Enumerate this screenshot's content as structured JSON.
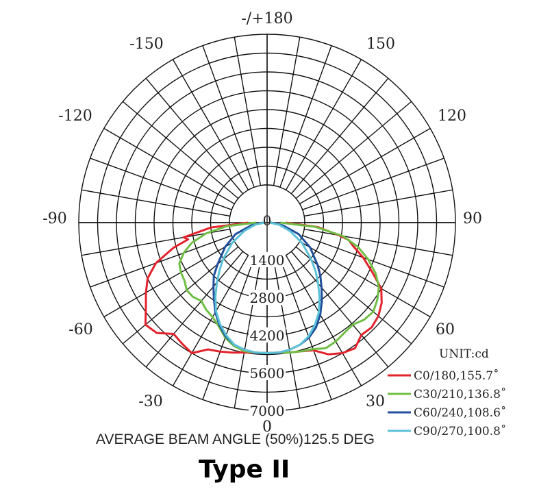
{
  "chart_data": {
    "type": "polar",
    "title": "",
    "angle_labels": [
      {
        "angle": 180,
        "text": "-/+180"
      },
      {
        "angle": -150,
        "text": "-150"
      },
      {
        "angle": 150,
        "text": "150"
      },
      {
        "angle": -120,
        "text": "-120"
      },
      {
        "angle": 120,
        "text": "120"
      },
      {
        "angle": -90,
        "text": "-90"
      },
      {
        "angle": 90,
        "text": "90"
      },
      {
        "angle": -60,
        "text": "-60"
      },
      {
        "angle": 60,
        "text": "60"
      },
      {
        "angle": -30,
        "text": "-30"
      },
      {
        "angle": 30,
        "text": "30"
      },
      {
        "angle": 0,
        "text": "0"
      }
    ],
    "radial_labels": [
      "0",
      "1400",
      "2800",
      "4200",
      "5600",
      "7000"
    ],
    "radial_values": [
      0,
      1400,
      2800,
      4200,
      5600,
      7000
    ],
    "rmax": 7000,
    "unit_label": "UNIT:cd",
    "grid": true,
    "series": [
      {
        "name": "C0/180,155.7˚",
        "color": "#e3222b",
        "points": [
          [
            -90,
            700
          ],
          [
            -85,
            2100
          ],
          [
            -80,
            3150
          ],
          [
            -78,
            3000
          ],
          [
            -75,
            3600
          ],
          [
            -70,
            4400
          ],
          [
            -65,
            4900
          ],
          [
            -60,
            5200
          ],
          [
            -55,
            5500
          ],
          [
            -50,
            5900
          ],
          [
            -45,
            5800
          ],
          [
            -40,
            5400
          ],
          [
            -35,
            5500
          ],
          [
            -30,
            5600
          ],
          [
            -25,
            5200
          ],
          [
            -20,
            5100
          ],
          [
            -15,
            5000
          ],
          [
            -10,
            4900
          ],
          [
            -5,
            4850
          ],
          [
            0,
            4850
          ],
          [
            5,
            4850
          ],
          [
            10,
            4900
          ],
          [
            15,
            4950
          ],
          [
            20,
            5050
          ],
          [
            25,
            5400
          ],
          [
            30,
            5600
          ],
          [
            35,
            5700
          ],
          [
            40,
            5450
          ],
          [
            45,
            5500
          ],
          [
            50,
            5400
          ],
          [
            55,
            5200
          ],
          [
            60,
            4900
          ],
          [
            65,
            4300
          ],
          [
            70,
            3800
          ],
          [
            75,
            3300
          ],
          [
            78,
            3100
          ],
          [
            80,
            2700
          ],
          [
            85,
            1900
          ],
          [
            90,
            700
          ]
        ]
      },
      {
        "name": "C30/210,136.8˚",
        "color": "#6fbe44",
        "points": [
          [
            -90,
            400
          ],
          [
            -85,
            1500
          ],
          [
            -80,
            2300
          ],
          [
            -75,
            2900
          ],
          [
            -70,
            3300
          ],
          [
            -65,
            3600
          ],
          [
            -60,
            3700
          ],
          [
            -55,
            3750
          ],
          [
            -50,
            3900
          ],
          [
            -45,
            3900
          ],
          [
            -40,
            3800
          ],
          [
            -35,
            3950
          ],
          [
            -30,
            4050
          ],
          [
            -25,
            4250
          ],
          [
            -20,
            4550
          ],
          [
            -15,
            4750
          ],
          [
            -10,
            4850
          ],
          [
            -5,
            4850
          ],
          [
            0,
            4850
          ],
          [
            5,
            4850
          ],
          [
            10,
            4900
          ],
          [
            15,
            4950
          ],
          [
            20,
            5000
          ],
          [
            25,
            5150
          ],
          [
            30,
            5100
          ],
          [
            35,
            5000
          ],
          [
            40,
            4950
          ],
          [
            45,
            5100
          ],
          [
            50,
            5150
          ],
          [
            55,
            5000
          ],
          [
            60,
            4800
          ],
          [
            65,
            4450
          ],
          [
            70,
            4000
          ],
          [
            75,
            3500
          ],
          [
            80,
            2850
          ],
          [
            85,
            1800
          ],
          [
            90,
            500
          ]
        ]
      },
      {
        "name": "C60/240,108.6˚",
        "color": "#1f4e9a",
        "points": [
          [
            -90,
            150
          ],
          [
            -80,
            600
          ],
          [
            -70,
            1250
          ],
          [
            -60,
            1800
          ],
          [
            -50,
            2400
          ],
          [
            -45,
            2800
          ],
          [
            -40,
            3100
          ],
          [
            -35,
            3450
          ],
          [
            -30,
            3850
          ],
          [
            -25,
            4200
          ],
          [
            -20,
            4500
          ],
          [
            -15,
            4700
          ],
          [
            -10,
            4800
          ],
          [
            -5,
            4850
          ],
          [
            0,
            4850
          ],
          [
            5,
            4850
          ],
          [
            10,
            4800
          ],
          [
            15,
            4700
          ],
          [
            20,
            4550
          ],
          [
            25,
            4300
          ],
          [
            30,
            3950
          ],
          [
            35,
            3550
          ],
          [
            40,
            3150
          ],
          [
            45,
            2800
          ],
          [
            50,
            2450
          ],
          [
            60,
            1850
          ],
          [
            70,
            1250
          ],
          [
            80,
            600
          ],
          [
            90,
            150
          ]
        ]
      },
      {
        "name": "C90/270,100.8˚",
        "color": "#5bc2d8",
        "points": [
          [
            -90,
            100
          ],
          [
            -80,
            450
          ],
          [
            -70,
            900
          ],
          [
            -60,
            1500
          ],
          [
            -50,
            2150
          ],
          [
            -45,
            2500
          ],
          [
            -40,
            2900
          ],
          [
            -35,
            3350
          ],
          [
            -30,
            3800
          ],
          [
            -25,
            4150
          ],
          [
            -20,
            4450
          ],
          [
            -15,
            4700
          ],
          [
            -10,
            4800
          ],
          [
            -5,
            4850
          ],
          [
            0,
            4850
          ],
          [
            5,
            4850
          ],
          [
            10,
            4800
          ],
          [
            15,
            4700
          ],
          [
            20,
            4500
          ],
          [
            25,
            4200
          ],
          [
            30,
            3850
          ],
          [
            35,
            3400
          ],
          [
            40,
            2950
          ],
          [
            45,
            2550
          ],
          [
            50,
            2150
          ],
          [
            60,
            1500
          ],
          [
            70,
            900
          ],
          [
            80,
            450
          ],
          [
            90,
            100
          ]
        ]
      }
    ]
  },
  "footer": {
    "beam_angle_text": "AVERAGE BEAM ANGLE (50%)125.5 DEG",
    "type_label": "Type II"
  }
}
